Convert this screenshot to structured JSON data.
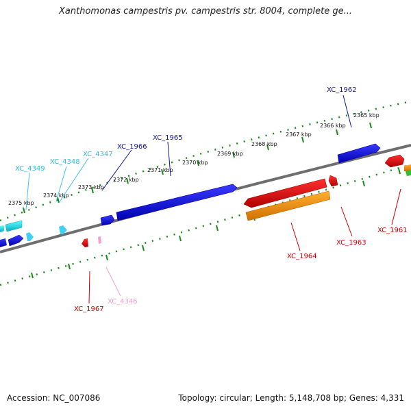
{
  "title": "Xanthomonas campestris pv. campestris str. 8004, complete ge...",
  "footer": {
    "accession": "Accession: NC_007086",
    "summary": "Topology: circular; Length: 5,148,708 bp; Genes: 4,331"
  },
  "colors": {
    "backbone": "#7a7a7a",
    "tick_ring": "#1a8a1a",
    "blue": "#1010e0",
    "cyan": "#20e0e0",
    "red": "#ee1111",
    "orange": "#f59000",
    "pink": "#f4a0c8",
    "green": "#30c030"
  },
  "ticks": [
    "2365 kbp",
    "2366 kbp",
    "2367 kbp",
    "2368 kbp",
    "2369 kbp",
    "2370 kbp",
    "2371 kbp",
    "2372 kbp",
    "2373 kbp",
    "2374 kbp",
    "2375 kbp"
  ],
  "gene_labels": [
    {
      "text": "XC_1962",
      "color": "#1010a0"
    },
    {
      "text": "XC_1965",
      "color": "#1010a0"
    },
    {
      "text": "XC_1966",
      "color": "#1010a0"
    },
    {
      "text": "XC_4347",
      "color": "#30b8e0"
    },
    {
      "text": "XC_4348",
      "color": "#30b8e0"
    },
    {
      "text": "XC_4349",
      "color": "#30b8e0"
    },
    {
      "text": "XC_1961",
      "color": "#cc0000"
    },
    {
      "text": "XC_1963",
      "color": "#cc0000"
    },
    {
      "text": "XC_1964",
      "color": "#cc0000"
    },
    {
      "text": "XC_1967",
      "color": "#cc0000"
    },
    {
      "text": "XC_4346",
      "color": "#f0a0c8"
    }
  ]
}
